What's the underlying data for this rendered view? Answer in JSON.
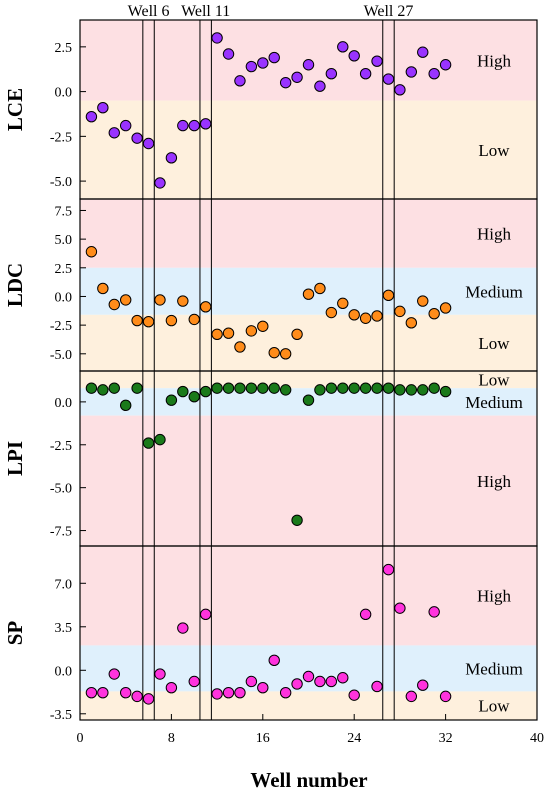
{
  "chart_data": {
    "type": "scatter",
    "xlabel": "Well number",
    "xlim": [
      0,
      40
    ],
    "x_ticks": [
      0,
      8,
      16,
      24,
      32,
      40
    ],
    "grid": false,
    "well_markers": [
      {
        "label": "Well 6",
        "x": 6
      },
      {
        "label": "Well 11",
        "x": 11
      },
      {
        "label": "Well 27",
        "x": 27
      }
    ],
    "panels": [
      {
        "ylabel": "LCE",
        "ylim": [
          -6.0,
          4.0
        ],
        "y_ticks": [
          2.5,
          0.0,
          -2.5,
          -5.0
        ],
        "y_tick_labels": [
          "2.5",
          "0.0",
          "-2.5",
          "-5.0"
        ],
        "marker_color": "#9933ff",
        "bands": [
          {
            "label": "High",
            "from": -0.5,
            "to": 4.0,
            "color": "#fde0e3"
          },
          {
            "label": "Low",
            "from": -6.0,
            "to": -0.5,
            "color": "#fef0dd"
          }
        ],
        "x": [
          1,
          2,
          3,
          4,
          5,
          6,
          7,
          8,
          9,
          10,
          11,
          12,
          13,
          14,
          15,
          16,
          17,
          18,
          19,
          20,
          21,
          22,
          23,
          24,
          25,
          26,
          27,
          28,
          29,
          30,
          31,
          32
        ],
        "y": [
          -1.4,
          -0.9,
          -2.3,
          -1.9,
          -2.6,
          -2.9,
          -5.1,
          -3.7,
          -1.9,
          -1.9,
          -1.8,
          3.0,
          2.1,
          0.6,
          1.4,
          1.6,
          1.9,
          0.5,
          0.8,
          1.5,
          0.3,
          1.0,
          2.5,
          2.0,
          1.0,
          1.7,
          0.7,
          0.1,
          1.1,
          2.2,
          1.0,
          1.5
        ]
      },
      {
        "ylabel": "LDC",
        "ylim": [
          -6.5,
          8.5
        ],
        "y_ticks": [
          7.5,
          5.0,
          2.5,
          0.0,
          -2.5,
          -5.0
        ],
        "y_tick_labels": [
          "7.5",
          "5.0",
          "2.5",
          "0.0",
          "-2.5",
          "-5.0"
        ],
        "marker_color": "#ff8c1a",
        "bands": [
          {
            "label": "High",
            "from": 2.5,
            "to": 8.5,
            "color": "#fde0e3"
          },
          {
            "label": "Medium",
            "from": -1.6,
            "to": 2.5,
            "color": "#dff0fc"
          },
          {
            "label": "Low",
            "from": -6.5,
            "to": -1.6,
            "color": "#fef0dd"
          }
        ],
        "x": [
          1,
          2,
          3,
          4,
          5,
          6,
          7,
          8,
          9,
          10,
          11,
          12,
          13,
          14,
          15,
          16,
          17,
          18,
          19,
          20,
          21,
          22,
          23,
          24,
          25,
          26,
          27,
          28,
          29,
          30,
          31,
          32
        ],
        "y": [
          3.9,
          0.7,
          -0.7,
          -0.3,
          -2.1,
          -2.2,
          -0.3,
          -2.1,
          -0.4,
          -2.0,
          -0.9,
          -3.3,
          -3.2,
          -4.4,
          -3.0,
          -2.6,
          -4.9,
          -5.0,
          -3.3,
          0.2,
          0.7,
          -1.4,
          -0.6,
          -1.6,
          -1.9,
          -1.7,
          0.1,
          -1.3,
          -2.3,
          -0.4,
          -1.5,
          -1.0
        ]
      },
      {
        "ylabel": "LPI",
        "ylim": [
          -8.4,
          1.8
        ],
        "y_ticks": [
          0.0,
          -2.5,
          -5.0,
          -7.5
        ],
        "y_tick_labels": [
          "0.0",
          "-2.5",
          "-5.0",
          "-7.5"
        ],
        "marker_color": "#1a7a1a",
        "bands": [
          {
            "label": "Low",
            "from": 0.8,
            "to": 1.8,
            "color": "#fef0dd"
          },
          {
            "label": "Medium",
            "from": -0.8,
            "to": 0.8,
            "color": "#dff0fc"
          },
          {
            "label": "High",
            "from": -8.4,
            "to": -0.8,
            "color": "#fde0e3"
          }
        ],
        "x": [
          1,
          2,
          3,
          4,
          5,
          6,
          7,
          8,
          9,
          10,
          11,
          12,
          13,
          14,
          15,
          16,
          17,
          18,
          19,
          20,
          21,
          22,
          23,
          24,
          25,
          26,
          27,
          28,
          29,
          30,
          31,
          32
        ],
        "y": [
          0.8,
          0.7,
          0.8,
          -0.2,
          0.8,
          -2.4,
          -2.2,
          0.1,
          0.6,
          0.3,
          0.6,
          0.8,
          0.8,
          0.8,
          0.8,
          0.8,
          0.8,
          0.7,
          -6.9,
          0.1,
          0.7,
          0.8,
          0.8,
          0.8,
          0.8,
          0.8,
          0.8,
          0.7,
          0.7,
          0.7,
          0.8,
          0.6
        ]
      },
      {
        "ylabel": "SP",
        "ylim": [
          -4.0,
          10.0
        ],
        "y_ticks": [
          7.0,
          3.5,
          0.0,
          -3.5
        ],
        "y_tick_labels": [
          "7.0",
          "3.5",
          "0.0",
          "-3.5"
        ],
        "marker_color": "#ff33dd",
        "bands": [
          {
            "label": "High",
            "from": 2.0,
            "to": 10.0,
            "color": "#fde0e3"
          },
          {
            "label": "Medium",
            "from": -1.7,
            "to": 2.0,
            "color": "#dff0fc"
          },
          {
            "label": "Low",
            "from": -4.0,
            "to": -1.7,
            "color": "#fef0dd"
          }
        ],
        "x": [
          1,
          2,
          3,
          4,
          5,
          6,
          7,
          8,
          9,
          10,
          11,
          12,
          13,
          14,
          15,
          16,
          17,
          18,
          19,
          20,
          21,
          22,
          23,
          24,
          25,
          26,
          27,
          28,
          29,
          30,
          31,
          32
        ],
        "y": [
          -1.8,
          -1.8,
          -0.3,
          -1.8,
          -2.1,
          -2.3,
          -0.3,
          -1.4,
          3.4,
          -0.9,
          4.5,
          -1.9,
          -1.8,
          -1.8,
          -0.9,
          -1.4,
          0.8,
          -1.8,
          -1.1,
          -0.5,
          -0.9,
          -0.9,
          -0.6,
          -2.0,
          4.5,
          -1.3,
          8.1,
          5.0,
          -2.1,
          -1.2,
          4.7,
          -2.1
        ]
      }
    ]
  }
}
